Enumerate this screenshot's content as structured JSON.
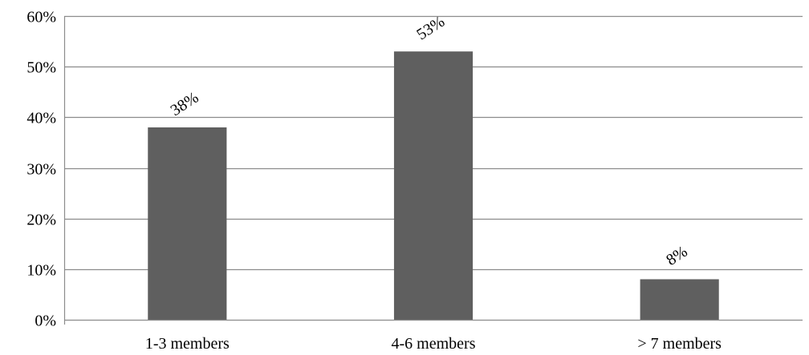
{
  "chart_data": {
    "type": "bar",
    "categories": [
      "1-3 members",
      "4-6 members",
      "> 7 members"
    ],
    "values": [
      38,
      53,
      8
    ],
    "data_labels": [
      "38%",
      "53%",
      "8%"
    ],
    "y_ticks": [
      0,
      10,
      20,
      30,
      40,
      50,
      60
    ],
    "y_tick_labels": [
      "0%",
      "10%",
      "20%",
      "30%",
      "40%",
      "50%",
      "60%"
    ],
    "ylim": [
      0,
      60
    ],
    "grid": true,
    "legend": "none",
    "colors": {
      "bar": "#5f5f5f",
      "grid": "#8c8c8c",
      "axis": "#8c8c8c",
      "text": "#000000"
    }
  }
}
